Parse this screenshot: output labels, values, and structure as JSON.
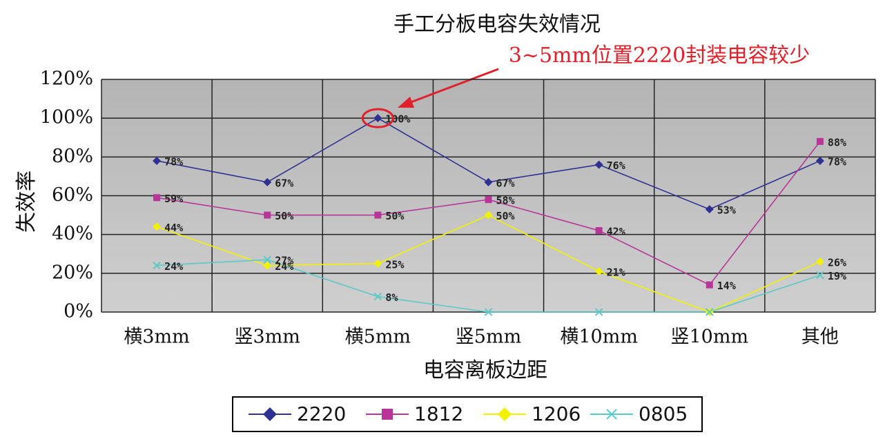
{
  "chart_data": {
    "type": "line",
    "title": "手工分板电容失效情况",
    "annotation": "3~5mm位置2220封装电容较少",
    "x_label": "电容离板边距",
    "y_label": "失效率",
    "categories": [
      "横3mm",
      "竖3mm",
      "横5mm",
      "竖5mm",
      "横10mm",
      "竖10mm",
      "其他"
    ],
    "series": [
      {
        "name": "2220",
        "color": "#2e3192",
        "marker": "diamond",
        "values": [
          78,
          67,
          100,
          67,
          76,
          53,
          78
        ],
        "value_labels": [
          "78%",
          "67%",
          "100%",
          "67%",
          "76%",
          "53%",
          "78%"
        ]
      },
      {
        "name": "1812",
        "color": "#b8359a",
        "marker": "square",
        "values": [
          59,
          50,
          50,
          58,
          42,
          14,
          88
        ],
        "value_labels": [
          "59%",
          "50%",
          "50%",
          "58%",
          "42%",
          "14%",
          "88%"
        ]
      },
      {
        "name": "1206",
        "color": "#f2f200",
        "marker": "diamond",
        "values": [
          44,
          24,
          25,
          50,
          21,
          0,
          26
        ],
        "value_labels": [
          "44%",
          "24%",
          "25%",
          "50%",
          "21%",
          null,
          "26%"
        ]
      },
      {
        "name": "0805",
        "color": "#5cc8c8",
        "marker": "x",
        "values": [
          24,
          27,
          8,
          0,
          0,
          0,
          19
        ],
        "value_labels": [
          "24%",
          "27%",
          "8%",
          null,
          null,
          null,
          "19%"
        ]
      }
    ],
    "ylim": [
      0,
      120
    ],
    "yticks": [
      {
        "value": 0,
        "label": "0%"
      },
      {
        "value": 20,
        "label": "20%"
      },
      {
        "value": 40,
        "label": "40%"
      },
      {
        "value": 60,
        "label": "60%"
      },
      {
        "value": 80,
        "label": "80%"
      },
      {
        "value": 100,
        "label": "100%"
      },
      {
        "value": 120,
        "label": "120%"
      }
    ],
    "grid": true
  }
}
